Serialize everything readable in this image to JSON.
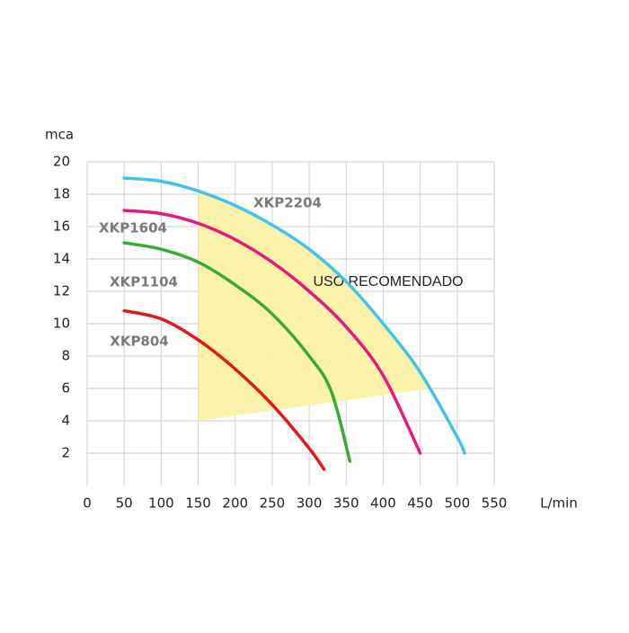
{
  "chart_data": {
    "type": "line",
    "y_label": "mca",
    "x_label": "L/min",
    "xlim": [
      0,
      550
    ],
    "xticks": [
      0,
      50,
      100,
      150,
      200,
      250,
      300,
      350,
      400,
      450,
      500,
      550
    ],
    "ylim": [
      0,
      20
    ],
    "yticks": [
      2,
      4,
      6,
      8,
      10,
      12,
      14,
      16,
      18,
      20
    ],
    "grid": true,
    "recommended_area": {
      "label": "USO RECOMENDADO",
      "color": "#fbf2a2",
      "x": [
        150,
        465,
        450,
        400,
        350,
        300,
        250,
        200,
        150
      ],
      "y": [
        4,
        6,
        7,
        10,
        12.6,
        14.6,
        16.1,
        17.3,
        18.2
      ]
    },
    "series": [
      {
        "name": "XKP2204",
        "color": "#45c1ee",
        "x": [
          50,
          100,
          150,
          200,
          250,
          300,
          350,
          400,
          450,
          500,
          510
        ],
        "values": [
          19,
          18.8,
          18.2,
          17.3,
          16.1,
          14.6,
          12.6,
          10,
          7,
          3,
          2
        ]
      },
      {
        "name": "XKP1604",
        "color": "#e5197f",
        "x": [
          50,
          100,
          150,
          200,
          250,
          300,
          350,
          400,
          450
        ],
        "values": [
          17,
          16.8,
          16.2,
          15.2,
          13.8,
          12,
          9.8,
          6.8,
          2
        ]
      },
      {
        "name": "XKP1104",
        "color": "#3aaa35",
        "x": [
          50,
          100,
          150,
          200,
          250,
          300,
          330,
          355
        ],
        "values": [
          15,
          14.6,
          13.8,
          12.4,
          10.6,
          8,
          5.8,
          1.5
        ]
      },
      {
        "name": "XKP804",
        "color": "#e3181f",
        "x": [
          50,
          100,
          150,
          200,
          250,
          300,
          320
        ],
        "values": [
          10.8,
          10.3,
          9,
          7.2,
          5,
          2.3,
          1
        ]
      }
    ]
  }
}
